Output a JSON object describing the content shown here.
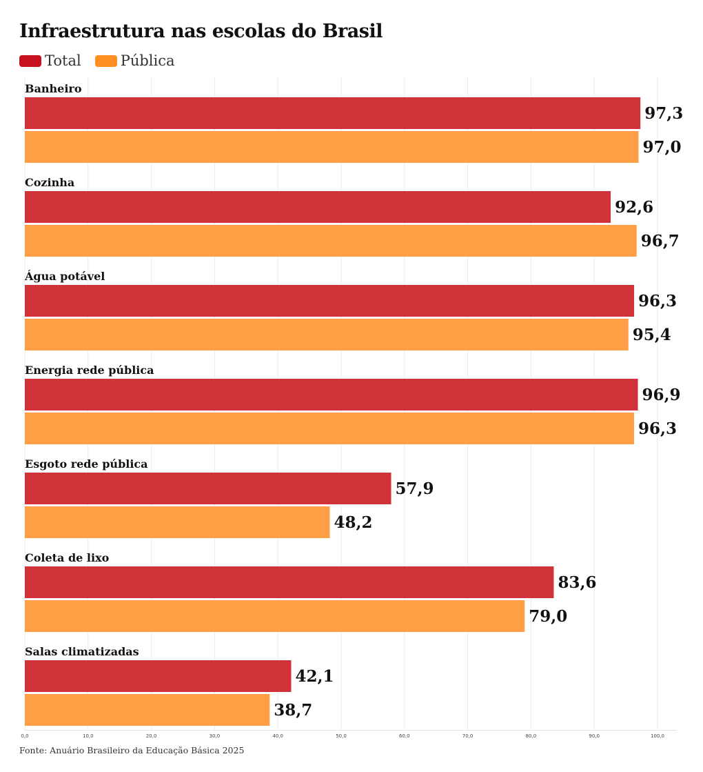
{
  "title": "Infraestrutura nas escolas do Brasil",
  "legend": [
    {
      "label": "Total",
      "color": "#c8111e"
    },
    {
      "label": "Pública",
      "color": "#ff8f22"
    }
  ],
  "source": "Fonte: Anuário Brasileiro da Educação Básica 2025",
  "chart_data": {
    "type": "bar",
    "orientation": "horizontal",
    "title": "Infraestrutura nas escolas do Brasil",
    "categories": [
      "Banheiro",
      "Cozinha",
      "Água potável",
      "Energia rede pública",
      "Esgoto rede pública",
      "Coleta de lixo",
      "Salas climatizadas"
    ],
    "series": [
      {
        "name": "Total",
        "color": "#d1323a",
        "values": [
          97.3,
          92.6,
          96.3,
          96.9,
          57.9,
          83.6,
          42.1
        ],
        "labels": [
          "97,3",
          "92,6",
          "96,3",
          "96,9",
          "57,9",
          "83,6",
          "42,1"
        ]
      },
      {
        "name": "Pública",
        "color": "#fe9f46",
        "values": [
          97.0,
          96.7,
          95.4,
          96.3,
          48.2,
          79.0,
          38.7
        ],
        "labels": [
          "97,0",
          "96,7",
          "95,4",
          "96,3",
          "48,2",
          "79,0",
          "38,7"
        ]
      }
    ],
    "xlim": [
      0,
      100
    ],
    "xticks": [
      0,
      10,
      20,
      30,
      40,
      50,
      60,
      70,
      80,
      90,
      100
    ],
    "xtick_labels": [
      "0,0",
      "10,0",
      "20,0",
      "30,0",
      "40,0",
      "50,0",
      "60,0",
      "70,0",
      "80,0",
      "90,0",
      "100,0"
    ],
    "grid": true,
    "legend_position": "top-left"
  }
}
